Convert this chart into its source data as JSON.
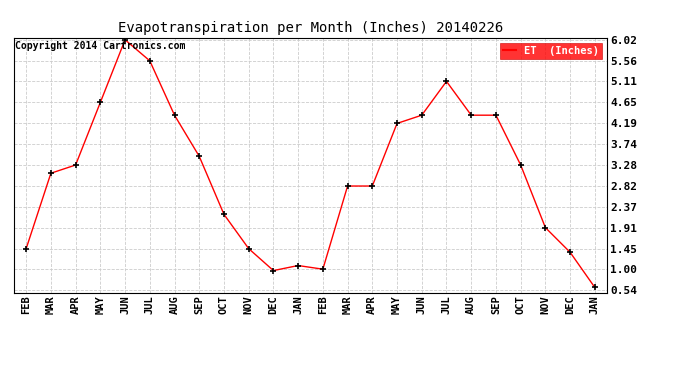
{
  "months": [
    "FEB",
    "MAR",
    "APR",
    "MAY",
    "JUN",
    "JUL",
    "AUG",
    "SEP",
    "OCT",
    "NOV",
    "DEC",
    "JAN",
    "FEB",
    "MAR",
    "APR",
    "MAY",
    "JUN",
    "JUL",
    "AUG",
    "SEP",
    "OCT",
    "NOV",
    "DEC",
    "JAN"
  ],
  "values": [
    1.45,
    3.1,
    3.28,
    4.65,
    6.02,
    5.56,
    4.37,
    3.47,
    2.2,
    1.45,
    0.97,
    1.08,
    1.0,
    2.82,
    2.82,
    4.19,
    4.37,
    5.11,
    4.37,
    4.37,
    3.28,
    1.91,
    1.37,
    0.6
  ],
  "yticks": [
    0.54,
    1.0,
    1.45,
    1.91,
    2.37,
    2.82,
    3.28,
    3.74,
    4.19,
    4.65,
    5.11,
    5.56,
    6.02
  ],
  "title": "Evapotranspiration per Month (Inches) 20140226",
  "line_color": "#ff0000",
  "marker_color": "#000000",
  "copyright_text": "Copyright 2014 Cartronics.com",
  "bg_color": "#ffffff",
  "grid_color": "#cccccc",
  "ylim_min": 0.54,
  "ylim_max": 6.02
}
